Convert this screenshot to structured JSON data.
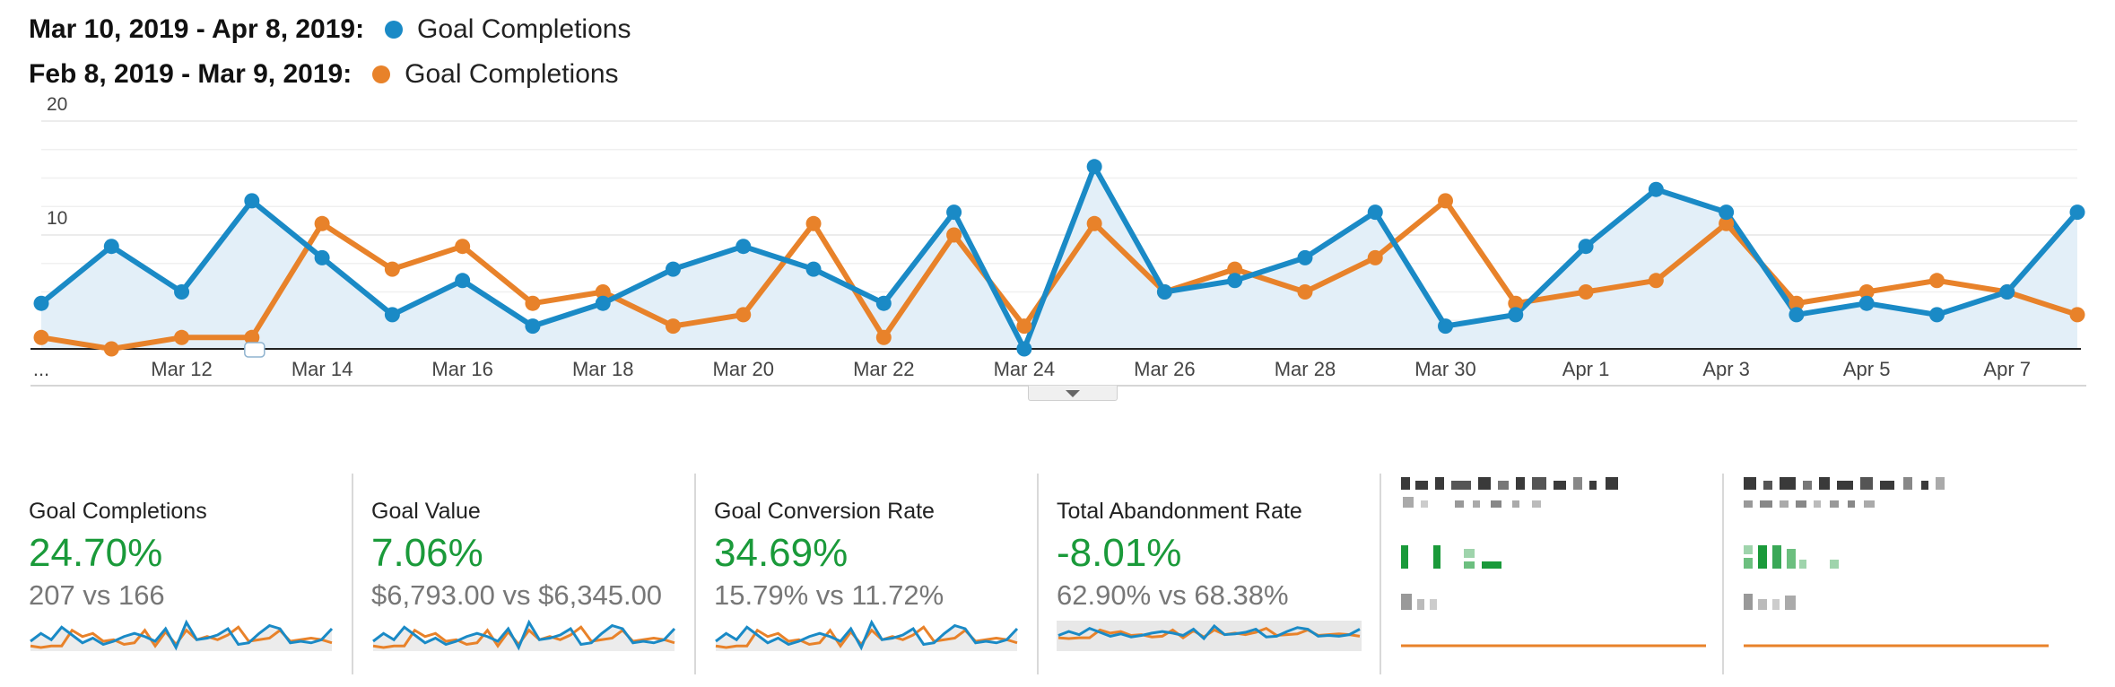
{
  "legend": [
    {
      "range": "Mar 10, 2019 - Apr 8, 2019:",
      "metric": "Goal Completions",
      "color": "#1a8ac6"
    },
    {
      "range": "Feb 8, 2019 - Mar 9, 2019:",
      "metric": "Goal Completions",
      "color": "#e8822a"
    }
  ],
  "chart_data": {
    "type": "line",
    "x": [
      "Mar 10",
      "Mar 11",
      "Mar 12",
      "Mar 13",
      "Mar 14",
      "Mar 15",
      "Mar 16",
      "Mar 17",
      "Mar 18",
      "Mar 19",
      "Mar 20",
      "Mar 21",
      "Mar 22",
      "Mar 23",
      "Mar 24",
      "Mar 25",
      "Mar 26",
      "Mar 27",
      "Mar 28",
      "Mar 29",
      "Mar 30",
      "Mar 31",
      "Apr 1",
      "Apr 2",
      "Apr 3",
      "Apr 4",
      "Apr 5",
      "Apr 6",
      "Apr 7",
      "Apr 8"
    ],
    "x_tick_labels": [
      "...",
      "Mar 12",
      "Mar 14",
      "Mar 16",
      "Mar 18",
      "Mar 20",
      "Mar 22",
      "Mar 24",
      "Mar 26",
      "Mar 28",
      "Mar 30",
      "Apr 1",
      "Apr 3",
      "Apr 5",
      "Apr 7"
    ],
    "y_tick_labels": [
      "20",
      "10"
    ],
    "ylim": [
      0,
      20
    ],
    "series": [
      {
        "name": "Mar 10, 2019 - Apr 8, 2019",
        "color": "#1a8ac6",
        "area_fill": "#e3eff8",
        "values": [
          4,
          9,
          5,
          13,
          8,
          3,
          6,
          2,
          4,
          7,
          9,
          7,
          4,
          12,
          0,
          16,
          5,
          6,
          8,
          12,
          2,
          3,
          9,
          14,
          12,
          3,
          4,
          3,
          5,
          12
        ]
      },
      {
        "name": "Feb 8, 2019 - Mar 9, 2019",
        "color": "#e8822a",
        "values": [
          1,
          0,
          1,
          1,
          11,
          7,
          9,
          4,
          5,
          2,
          3,
          11,
          1,
          10,
          2,
          11,
          5,
          7,
          5,
          8,
          13,
          4,
          5,
          6,
          11,
          4,
          5,
          6,
          5,
          3
        ]
      }
    ],
    "grid": true
  },
  "scorecards": [
    {
      "title": "Goal Completions",
      "change": "24.70%",
      "compare": "207 vs 166"
    },
    {
      "title": "Goal Value",
      "change": "7.06%",
      "compare": "$6,793.00 vs $6,345.00"
    },
    {
      "title": "Goal Conversion Rate",
      "change": "34.69%",
      "compare": "15.79% vs 11.72%"
    },
    {
      "title": "Total Abandonment Rate",
      "change": "-8.01%",
      "compare": "62.90% vs 68.38%"
    }
  ],
  "colors": {
    "current": "#1a8ac6",
    "previous": "#e8822a",
    "positive": "#1a9a3a",
    "muted": "#777777"
  }
}
